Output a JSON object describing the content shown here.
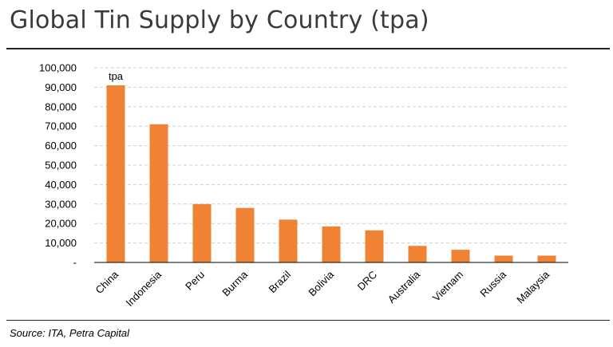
{
  "header": {
    "title": "Global Tin Supply by Country (tpa)"
  },
  "footer": {
    "source": "Source: ITA, Petra Capital"
  },
  "chart_data": {
    "type": "bar",
    "title": "Global Tin Supply by Country (tpa)",
    "unit_label": "tpa",
    "categories": [
      "China",
      "Indonesia",
      "Peru",
      "Burma",
      "Brazil",
      "Bolivia",
      "DRC",
      "Australia",
      "Vietnam",
      "Russia",
      "Malaysia"
    ],
    "values": [
      91000,
      71000,
      30000,
      28000,
      22000,
      18500,
      16500,
      8500,
      6500,
      3500,
      3500
    ],
    "ylim": [
      0,
      100000
    ],
    "yticks": [
      0,
      10000,
      20000,
      30000,
      40000,
      50000,
      60000,
      70000,
      80000,
      90000,
      100000
    ],
    "ytick_labels": [
      "-",
      "10,000",
      "20,000",
      "30,000",
      "40,000",
      "50,000",
      "60,000",
      "70,000",
      "80,000",
      "90,000",
      "100,000"
    ],
    "grid": true,
    "legend": "none",
    "colors": {
      "bar": "#f08333",
      "grid": "#d0d0d0",
      "axis": "#000000"
    }
  }
}
